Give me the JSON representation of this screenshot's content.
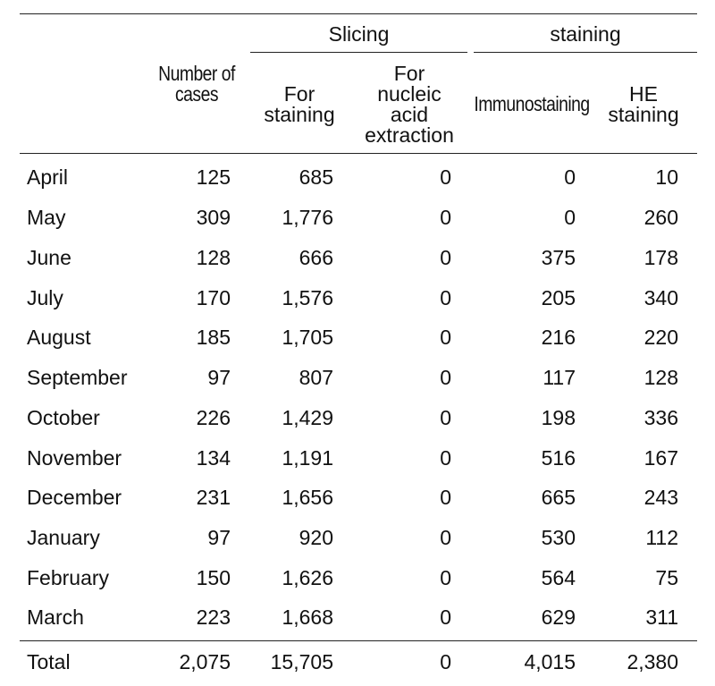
{
  "header": {
    "group_slicing": "Slicing",
    "group_staining": "staining",
    "cases": "Number of cases",
    "cases_line1": "Number of",
    "cases_line2": "cases",
    "for_staining_line1": "For",
    "for_staining_line2": "staining",
    "nucleic_line1": "For",
    "nucleic_line2": "nucleic",
    "nucleic_line3": "acid",
    "nucleic_line4": "extraction",
    "immunostaining": "Immunostaining",
    "he_line1": "HE",
    "he_line2": "staining"
  },
  "rows": [
    {
      "month": "April",
      "cases": "125",
      "for_staining": "685",
      "nucleic": "0",
      "immuno": "0",
      "he": "10"
    },
    {
      "month": "May",
      "cases": "309",
      "for_staining": "1,776",
      "nucleic": "0",
      "immuno": "0",
      "he": "260"
    },
    {
      "month": "June",
      "cases": "128",
      "for_staining": "666",
      "nucleic": "0",
      "immuno": "375",
      "he": "178"
    },
    {
      "month": "July",
      "cases": "170",
      "for_staining": "1,576",
      "nucleic": "0",
      "immuno": "205",
      "he": "340"
    },
    {
      "month": "August",
      "cases": "185",
      "for_staining": "1,705",
      "nucleic": "0",
      "immuno": "216",
      "he": "220"
    },
    {
      "month": "September",
      "cases": "97",
      "for_staining": "807",
      "nucleic": "0",
      "immuno": "117",
      "he": "128"
    },
    {
      "month": "October",
      "cases": "226",
      "for_staining": "1,429",
      "nucleic": "0",
      "immuno": "198",
      "he": "336"
    },
    {
      "month": "November",
      "cases": "134",
      "for_staining": "1,191",
      "nucleic": "0",
      "immuno": "516",
      "he": "167"
    },
    {
      "month": "December",
      "cases": "231",
      "for_staining": "1,656",
      "nucleic": "0",
      "immuno": "665",
      "he": "243"
    },
    {
      "month": "January",
      "cases": "97",
      "for_staining": "920",
      "nucleic": "0",
      "immuno": "530",
      "he": "112"
    },
    {
      "month": "February",
      "cases": "150",
      "for_staining": "1,626",
      "nucleic": "0",
      "immuno": "564",
      "he": "75"
    },
    {
      "month": "March",
      "cases": "223",
      "for_staining": "1,668",
      "nucleic": "0",
      "immuno": "629",
      "he": "311"
    }
  ],
  "total": {
    "month": "Total",
    "cases": "2,075",
    "for_staining": "15,705",
    "nucleic": "0",
    "immuno": "4,015",
    "he": "2,380"
  }
}
